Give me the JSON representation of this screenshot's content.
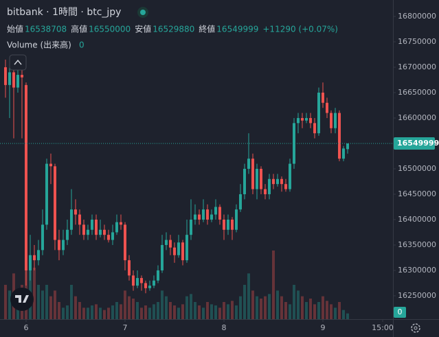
{
  "chart_data": {
    "type": "candlestick",
    "title": "bitbank · 1時間 · btc_jpy",
    "ohlc_legend": [
      {
        "label": "始値",
        "value": 16538708
      },
      {
        "label": "高値",
        "value": 16550000
      },
      {
        "label": "安値",
        "value": 16529880
      },
      {
        "label": "終値",
        "value": 16549999
      }
    ],
    "change": "+11290 (+0.07%)",
    "volume_label": "Volume (出来高)",
    "volume_value": 0,
    "up_color": "#26a69a",
    "down_color": "#ef5350",
    "grid": false,
    "ylim": [
      16204000,
      16832400
    ],
    "yticks": [
      16250000,
      16300000,
      16350000,
      16400000,
      16450000,
      16500000,
      16550000,
      16600000,
      16650000,
      16700000,
      16750000,
      16800000
    ],
    "xlim": [
      -1.33,
      94
    ],
    "xticks": [
      {
        "value": 5,
        "label": "6"
      },
      {
        "value": 29,
        "label": "7"
      },
      {
        "value": 53,
        "label": "8"
      },
      {
        "value": 77,
        "label": "9"
      },
      {
        "value": 91.5,
        "label": "15:00"
      }
    ],
    "open": [
      16700000,
      16665000,
      16690000,
      16660000,
      16685000,
      16665000,
      16300000,
      16330000,
      16320000,
      16340000,
      16390000,
      16510000,
      16505000,
      16360000,
      16340000,
      16360000,
      16380000,
      16420000,
      16410000,
      16390000,
      16370000,
      16380000,
      16400000,
      16370000,
      16380000,
      16370000,
      16360000,
      16375000,
      16395000,
      16390000,
      16320000,
      16290000,
      16270000,
      16285000,
      16275000,
      16265000,
      16270000,
      16280000,
      16300000,
      16350000,
      16360000,
      16345000,
      16330000,
      16355000,
      16320000,
      16370000,
      16400000,
      16410000,
      16400000,
      16420000,
      16400000,
      16410000,
      16425000,
      16400000,
      16380000,
      16400000,
      16380000,
      16420000,
      16450000,
      16500000,
      16520000,
      16460000,
      16500000,
      16460000,
      16450000,
      16480000,
      16470000,
      16480000,
      16470000,
      16460000,
      16510000,
      16590000,
      16600000,
      16595000,
      16600000,
      16590000,
      16570000,
      16650000,
      16630000,
      16610000,
      16580000,
      16610000,
      16520000,
      16538708
    ],
    "high": [
      16715000,
      16700000,
      16710000,
      16700000,
      16695000,
      16670000,
      16370000,
      16350000,
      16360000,
      16420000,
      16520000,
      16530000,
      16510000,
      16380000,
      16380000,
      16400000,
      16460000,
      16440000,
      16420000,
      16400000,
      16390000,
      16410000,
      16410000,
      16400000,
      16390000,
      16380000,
      16390000,
      16410000,
      16410000,
      16395000,
      16330000,
      16300000,
      16300000,
      16290000,
      16280000,
      16280000,
      16290000,
      16310000,
      16370000,
      16375000,
      16370000,
      16355000,
      16370000,
      16360000,
      16400000,
      16440000,
      16430000,
      16420000,
      16440000,
      16430000,
      16420000,
      16440000,
      16430000,
      16410000,
      16410000,
      16405000,
      16430000,
      16470000,
      16510000,
      16570000,
      16530000,
      16510000,
      16505000,
      16470000,
      16490000,
      16490000,
      16490000,
      16485000,
      16480000,
      16520000,
      16600000,
      16610000,
      16610000,
      16610000,
      16610000,
      16600000,
      16660000,
      16670000,
      16640000,
      16615000,
      16620000,
      16615000,
      16545000,
      16550000
    ],
    "low": [
      16640000,
      16600000,
      16560000,
      16650000,
      16560000,
      16270000,
      16280000,
      16300000,
      16310000,
      16330000,
      16380000,
      16470000,
      16340000,
      16320000,
      16330000,
      16350000,
      16370000,
      16390000,
      16370000,
      16360000,
      16360000,
      16370000,
      16360000,
      16365000,
      16360000,
      16355000,
      16350000,
      16370000,
      16380000,
      16300000,
      16280000,
      16260000,
      16265000,
      16260000,
      16255000,
      16260000,
      16265000,
      16275000,
      16295000,
      16340000,
      16330000,
      16315000,
      16325000,
      16310000,
      16315000,
      16360000,
      16390000,
      16390000,
      16395000,
      16390000,
      16395000,
      16400000,
      16390000,
      16360000,
      16370000,
      16360000,
      16375000,
      16415000,
      16440000,
      16490000,
      16450000,
      16440000,
      16450000,
      16440000,
      16440000,
      16460000,
      16465000,
      16455000,
      16455000,
      16455000,
      16500000,
      16570000,
      16580000,
      16590000,
      16580000,
      16560000,
      16565000,
      16620000,
      16600000,
      16570000,
      16570000,
      16515000,
      16515000,
      16529880
    ],
    "close": [
      16665000,
      16690000,
      16660000,
      16685000,
      16680000,
      16300000,
      16330000,
      16320000,
      16340000,
      16390000,
      16510000,
      16505000,
      16360000,
      16340000,
      16360000,
      16380000,
      16420000,
      16410000,
      16390000,
      16370000,
      16380000,
      16400000,
      16370000,
      16380000,
      16370000,
      16360000,
      16375000,
      16395000,
      16390000,
      16320000,
      16290000,
      16270000,
      16285000,
      16275000,
      16265000,
      16270000,
      16280000,
      16300000,
      16350000,
      16360000,
      16345000,
      16330000,
      16355000,
      16320000,
      16370000,
      16400000,
      16410000,
      16400000,
      16420000,
      16400000,
      16410000,
      16425000,
      16400000,
      16380000,
      16400000,
      16380000,
      16420000,
      16450000,
      16500000,
      16520000,
      16460000,
      16500000,
      16460000,
      16450000,
      16480000,
      16470000,
      16480000,
      16470000,
      16460000,
      16510000,
      16590000,
      16600000,
      16595000,
      16600000,
      16590000,
      16570000,
      16650000,
      16630000,
      16610000,
      16580000,
      16610000,
      16520000,
      16540000,
      16549999
    ],
    "volume": [
      3,
      2.5,
      4,
      2,
      3,
      6,
      5,
      4.5,
      3,
      2.5,
      3,
      2,
      2.5,
      1.5,
      1,
      1.2,
      3,
      2,
      1.5,
      1,
      1,
      1.2,
      1.3,
      1,
      0.8,
      1,
      1.2,
      1.5,
      1.3,
      2.5,
      2,
      1.8,
      1.5,
      1,
      1.2,
      1,
      1.3,
      1.5,
      2.5,
      2,
      1.5,
      1.2,
      1,
      1.3,
      2,
      2.2,
      1.5,
      1.2,
      1,
      1.5,
      1.3,
      1.2,
      1,
      1.5,
      1.3,
      1.6,
      1.2,
      2,
      3,
      4,
      2.5,
      2,
      1.8,
      2,
      2.2,
      6,
      2.5,
      2,
      1.5,
      1.3,
      3,
      2.5,
      2,
      1.5,
      1.8,
      1.3,
      1.5,
      2,
      1.6,
      1.3,
      1,
      1.5,
      0.8,
      0.5
    ]
  }
}
